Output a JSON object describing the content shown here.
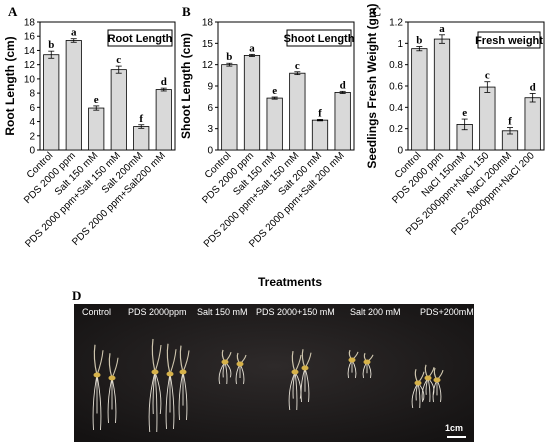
{
  "xlabel": "Treatments",
  "chart_data": [
    {
      "panel": "A",
      "type": "bar",
      "title": "Root Length",
      "ylabel": "Root Length (cm)",
      "ylim": [
        0,
        18
      ],
      "yticks": [
        0,
        2,
        4,
        6,
        8,
        10,
        12,
        14,
        16,
        18
      ],
      "categories": [
        "Control",
        "PDS 2000 ppm",
        "Salt 150 mM",
        "PDS 2000 ppm+Salt 150 mM",
        "Salt 200mM",
        "PDS 2000 ppm+Salt200 mM"
      ],
      "values": [
        13.4,
        15.4,
        5.9,
        11.3,
        3.3,
        8.5
      ],
      "errors": [
        0.5,
        0.25,
        0.3,
        0.5,
        0.25,
        0.2
      ],
      "letters": [
        "b",
        "a",
        "e",
        "c",
        "f",
        "d"
      ],
      "bar_color": "#d9d9d9",
      "grid": false
    },
    {
      "panel": "B",
      "type": "bar",
      "title": "Shoot Length",
      "ylabel": "Shoot Length (cm)",
      "ylim": [
        0,
        18
      ],
      "yticks": [
        0,
        3,
        6,
        9,
        12,
        15,
        18
      ],
      "categories": [
        "Control",
        "PDS 2000 ppm",
        "Salt 150 mM",
        "PDS 2000 ppm+Salt 150 mM",
        "Salt 200 mM",
        "PDS 2000 ppm+Salt 200 mM"
      ],
      "values": [
        12.0,
        13.3,
        7.3,
        10.8,
        4.2,
        8.1
      ],
      "errors": [
        0.2,
        0.15,
        0.15,
        0.2,
        0.1,
        0.15
      ],
      "letters": [
        "b",
        "a",
        "e",
        "c",
        "f",
        "d"
      ],
      "bar_color": "#d9d9d9",
      "grid": false
    },
    {
      "panel": "C",
      "type": "bar",
      "title": "Fresh weight",
      "ylabel": "Seedlings Fresh Weight (gm)",
      "ylim": [
        0,
        1.2
      ],
      "yticks": [
        0,
        0.2,
        0.4,
        0.6,
        0.8,
        1,
        1.2
      ],
      "categories": [
        "Control",
        "PDS 2000 ppm",
        "NaCl 150mM",
        "PDS 2000ppm+NaCl 150",
        "NaCl 200mM",
        "PDS 2000ppm+NaCl 200"
      ],
      "values": [
        0.95,
        1.04,
        0.24,
        0.59,
        0.18,
        0.49
      ],
      "errors": [
        0.02,
        0.04,
        0.05,
        0.05,
        0.03,
        0.04
      ],
      "letters": [
        "b",
        "a",
        "e",
        "c",
        "f",
        "d"
      ],
      "bar_color": "#d9d9d9",
      "grid": false
    }
  ],
  "photo": {
    "panel": "D",
    "labels": [
      "Control",
      "PDS 2000ppm",
      "Salt 150 mM",
      "PDS 2000+150 mM",
      "Salt 200 mM",
      "PDS+200mM"
    ],
    "scale_bar": "1cm",
    "background_color": "#1c1a1a"
  }
}
